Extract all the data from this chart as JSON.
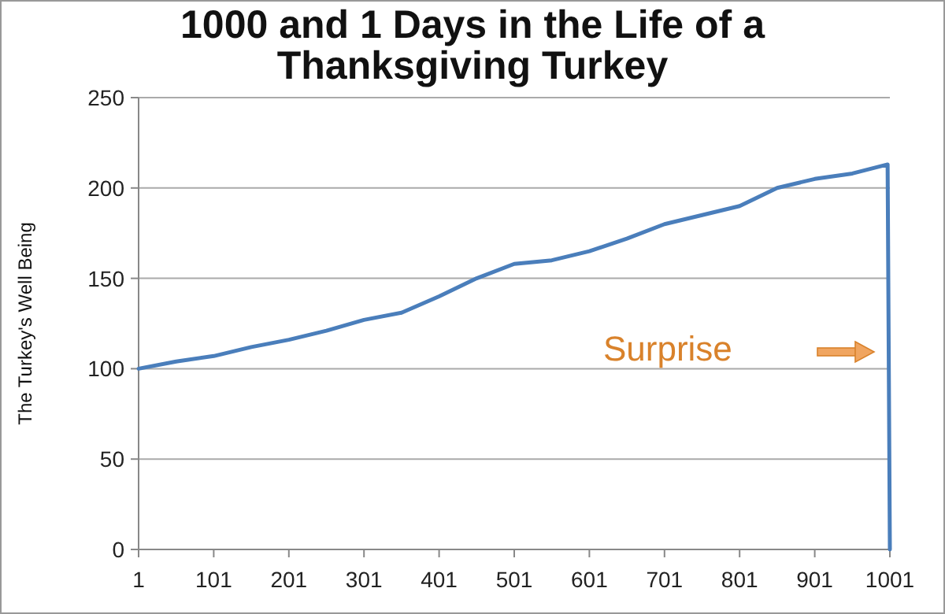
{
  "chart_data": {
    "type": "line",
    "title": "1000 and 1 Days in the Life of a Thanksgiving Turkey",
    "ylabel": "The Turkey's Well Being",
    "x": [
      1,
      51,
      101,
      151,
      201,
      251,
      301,
      351,
      401,
      451,
      501,
      551,
      601,
      651,
      701,
      751,
      801,
      851,
      901,
      951,
      998,
      1001
    ],
    "series": [
      {
        "color": "#4a7ebb",
        "values": [
          100,
          104,
          107,
          112,
          116,
          121,
          127,
          131,
          140,
          150,
          158,
          160,
          165,
          172,
          180,
          185,
          190,
          200,
          205,
          208,
          213,
          0
        ]
      }
    ],
    "xlim": [
      1,
      1001
    ],
    "xticks": [
      1,
      101,
      201,
      301,
      401,
      501,
      601,
      701,
      801,
      901,
      1001
    ],
    "ylim": [
      0,
      250
    ],
    "yticks": [
      0,
      50,
      100,
      150,
      200,
      250
    ],
    "grid": "y",
    "annotations": [
      "Surprise"
    ]
  }
}
